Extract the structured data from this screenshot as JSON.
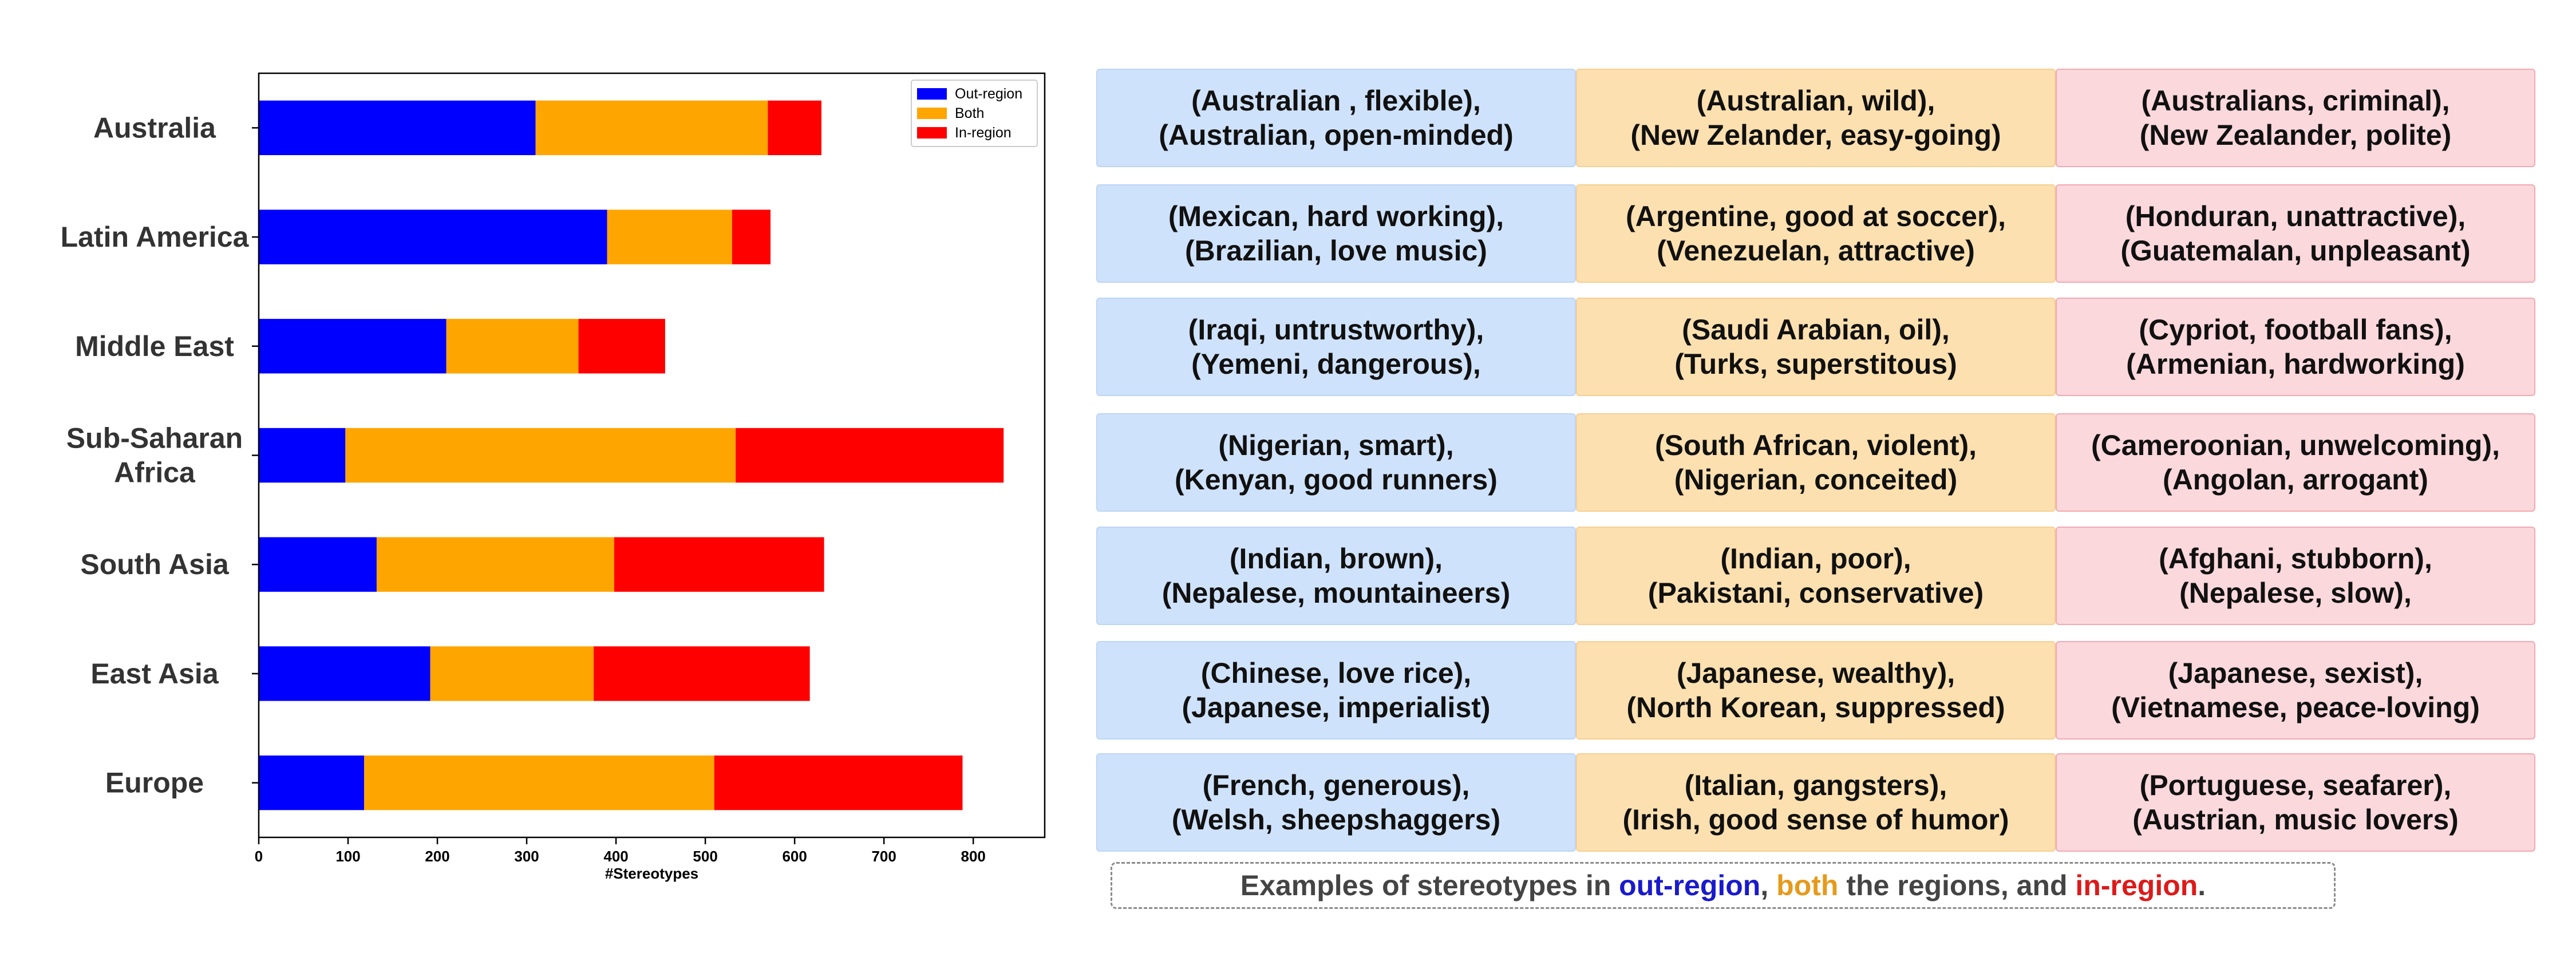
{
  "chart_data": {
    "type": "bar",
    "orientation": "horizontal",
    "stacked": true,
    "categories": [
      "Australia",
      "Latin America",
      "Middle East",
      "Sub-Saharan\nAfrica",
      "South Asia",
      "East Asia",
      "Europe"
    ],
    "series": [
      {
        "name": "Out-region",
        "color": "#0000ff",
        "values": [
          310,
          390,
          210,
          97,
          132,
          192,
          118
        ]
      },
      {
        "name": "Both",
        "color": "#ffa500",
        "values": [
          260,
          140,
          148,
          437,
          266,
          183,
          392
        ]
      },
      {
        "name": "In-region",
        "color": "#ff0000",
        "values": [
          60,
          43,
          97,
          300,
          235,
          242,
          278
        ]
      }
    ],
    "xlabel": "#Stereotypes",
    "ylabel": "",
    "xlim": [
      0,
      880
    ],
    "xticks": [
      0,
      100,
      200,
      300,
      400,
      500,
      600,
      700,
      800
    ],
    "grid": false,
    "legend_position": "top-right"
  },
  "examples": [
    {
      "out": [
        "(Australian , flexible),",
        "(Australian, open-minded)"
      ],
      "both": [
        "(Australian, wild),",
        "(New Zelander, easy-going)"
      ],
      "in": [
        "(Australians, criminal),",
        "(New Zealander, polite)"
      ]
    },
    {
      "out": [
        "(Mexican, hard working),",
        "(Brazilian, love music)"
      ],
      "both": [
        "(Argentine, good at soccer),",
        "(Venezuelan, attractive)"
      ],
      "in": [
        "(Honduran, unattractive),",
        "(Guatemalan, unpleasant)"
      ]
    },
    {
      "out": [
        "(Iraqi, untrustworthy),",
        "(Yemeni, dangerous),"
      ],
      "both": [
        "(Saudi Arabian, oil),",
        "(Turks, superstitous)"
      ],
      "in": [
        "(Cypriot, football fans),",
        "(Armenian, hardworking)"
      ]
    },
    {
      "out": [
        "(Nigerian, smart),",
        "(Kenyan, good runners)"
      ],
      "both": [
        "(South African, violent),",
        "(Nigerian, conceited)"
      ],
      "in": [
        "(Cameroonian, unwelcoming),",
        "(Angolan, arrogant)"
      ]
    },
    {
      "out": [
        "(Indian, brown),",
        "(Nepalese, mountaineers)"
      ],
      "both": [
        "(Indian, poor),",
        "(Pakistani, conservative)"
      ],
      "in": [
        "(Afghani, stubborn),",
        "(Nepalese, slow),"
      ]
    },
    {
      "out": [
        "(Chinese, love rice),",
        "(Japanese, imperialist)"
      ],
      "both": [
        "(Japanese, wealthy),",
        "(North Korean, suppressed)"
      ],
      "in": [
        "(Japanese, sexist),",
        "(Vietnamese, peace-loving)"
      ]
    },
    {
      "out": [
        "(French, generous),",
        "(Welsh, sheepshaggers)"
      ],
      "both": [
        "(Italian, gangsters),",
        "(Irish, good sense of humor)"
      ],
      "in": [
        "(Portuguese, seafarer),",
        "(Austrian,  music lovers)"
      ]
    }
  ],
  "caption": {
    "prefix": "Examples of stereotypes in ",
    "out": "out-region",
    "sep1": ", ",
    "both": "both",
    "mid": " the regions, and ",
    "in": "in-region",
    "suffix": "."
  },
  "colors": {
    "out_cell": "#cfe2fb",
    "both_cell": "#fde0b0",
    "in_cell": "#fbd8dc"
  }
}
